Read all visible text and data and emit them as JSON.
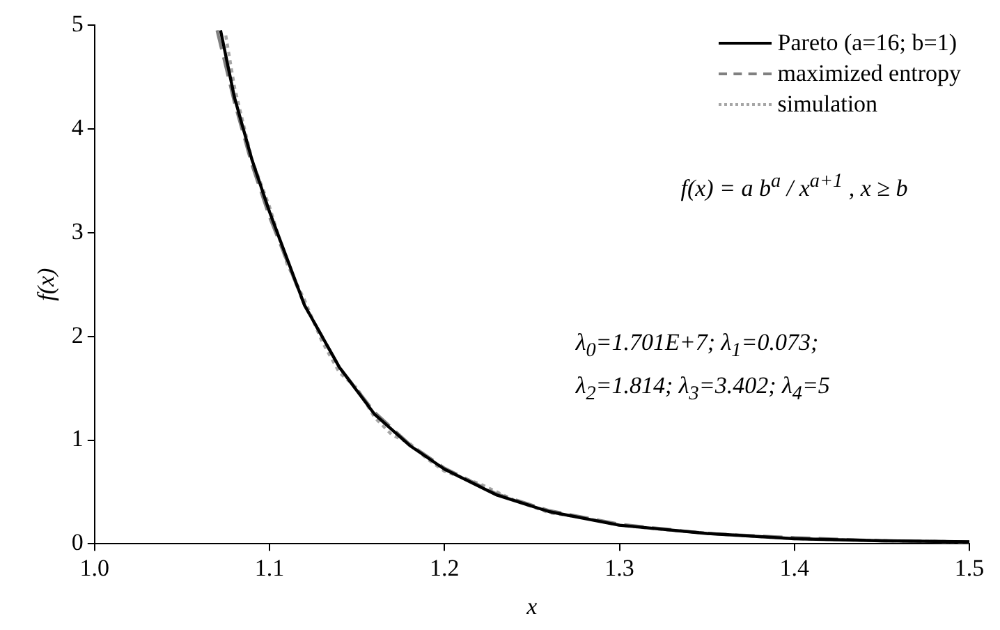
{
  "chart_data": {
    "type": "line",
    "xlabel": "x",
    "ylabel": "f(x)",
    "xlim": [
      1.0,
      1.5
    ],
    "xticks": [
      {
        "value": 1.0,
        "label": "1.0"
      },
      1.1,
      1.2,
      1.3,
      1.4,
      {
        "value": 1.5,
        "label": "1.5"
      }
    ],
    "ylim": [
      0,
      5
    ],
    "yticks": [
      0,
      1,
      2,
      3,
      4,
      5
    ],
    "grid": false,
    "legend": "top right",
    "marker": "none",
    "series": [
      {
        "name": "Pareto (a=16; b=1)",
        "color": "#000000",
        "line_style": "solid",
        "x": [
          1.072,
          1.08,
          1.09,
          1.1,
          1.12,
          1.14,
          1.16,
          1.18,
          1.2,
          1.23,
          1.26,
          1.3,
          1.35,
          1.4,
          1.45,
          1.5
        ],
        "values": [
          4.95,
          4.3,
          3.7,
          3.2,
          2.3,
          1.7,
          1.25,
          0.95,
          0.72,
          0.47,
          0.31,
          0.18,
          0.1,
          0.05,
          0.03,
          0.02
        ]
      },
      {
        "name": "maximized entropy",
        "color": "#808080",
        "line_style": "dashed",
        "x": [
          1.07,
          1.08,
          1.09,
          1.1,
          1.12,
          1.14,
          1.16,
          1.18,
          1.2,
          1.23,
          1.26,
          1.3,
          1.35,
          1.4,
          1.45,
          1.5
        ],
        "values": [
          4.95,
          4.25,
          3.65,
          3.15,
          2.3,
          1.7,
          1.27,
          0.96,
          0.73,
          0.48,
          0.32,
          0.19,
          0.1,
          0.06,
          0.03,
          0.02
        ]
      },
      {
        "name": "simulation",
        "color": "#a6a6a6",
        "line_style": "dotted",
        "x": [
          1.075,
          1.08,
          1.085,
          1.09,
          1.1,
          1.11,
          1.12,
          1.13,
          1.14,
          1.15,
          1.16,
          1.17,
          1.18,
          1.19,
          1.2,
          1.22,
          1.24,
          1.26,
          1.28,
          1.3,
          1.33,
          1.36,
          1.4,
          1.45,
          1.5
        ],
        "values": [
          4.9,
          4.4,
          4.05,
          3.7,
          3.25,
          2.7,
          2.35,
          1.95,
          1.65,
          1.5,
          1.22,
          1.05,
          0.97,
          0.82,
          0.7,
          0.58,
          0.42,
          0.3,
          0.25,
          0.18,
          0.13,
          0.09,
          0.05,
          0.03,
          0.02
        ]
      }
    ],
    "annotations": [
      {
        "text": "f(x) = a b$^{a}$ / x$^{a+1}$ , x ≥ b"
      },
      {
        "text": "λ$_{0}$=1.701E+7; λ$_{1}$=0.073;"
      },
      {
        "text": "λ$_{2}$=1.814; λ$_{3}$=3.402; λ$_{4}$=5"
      }
    ]
  }
}
